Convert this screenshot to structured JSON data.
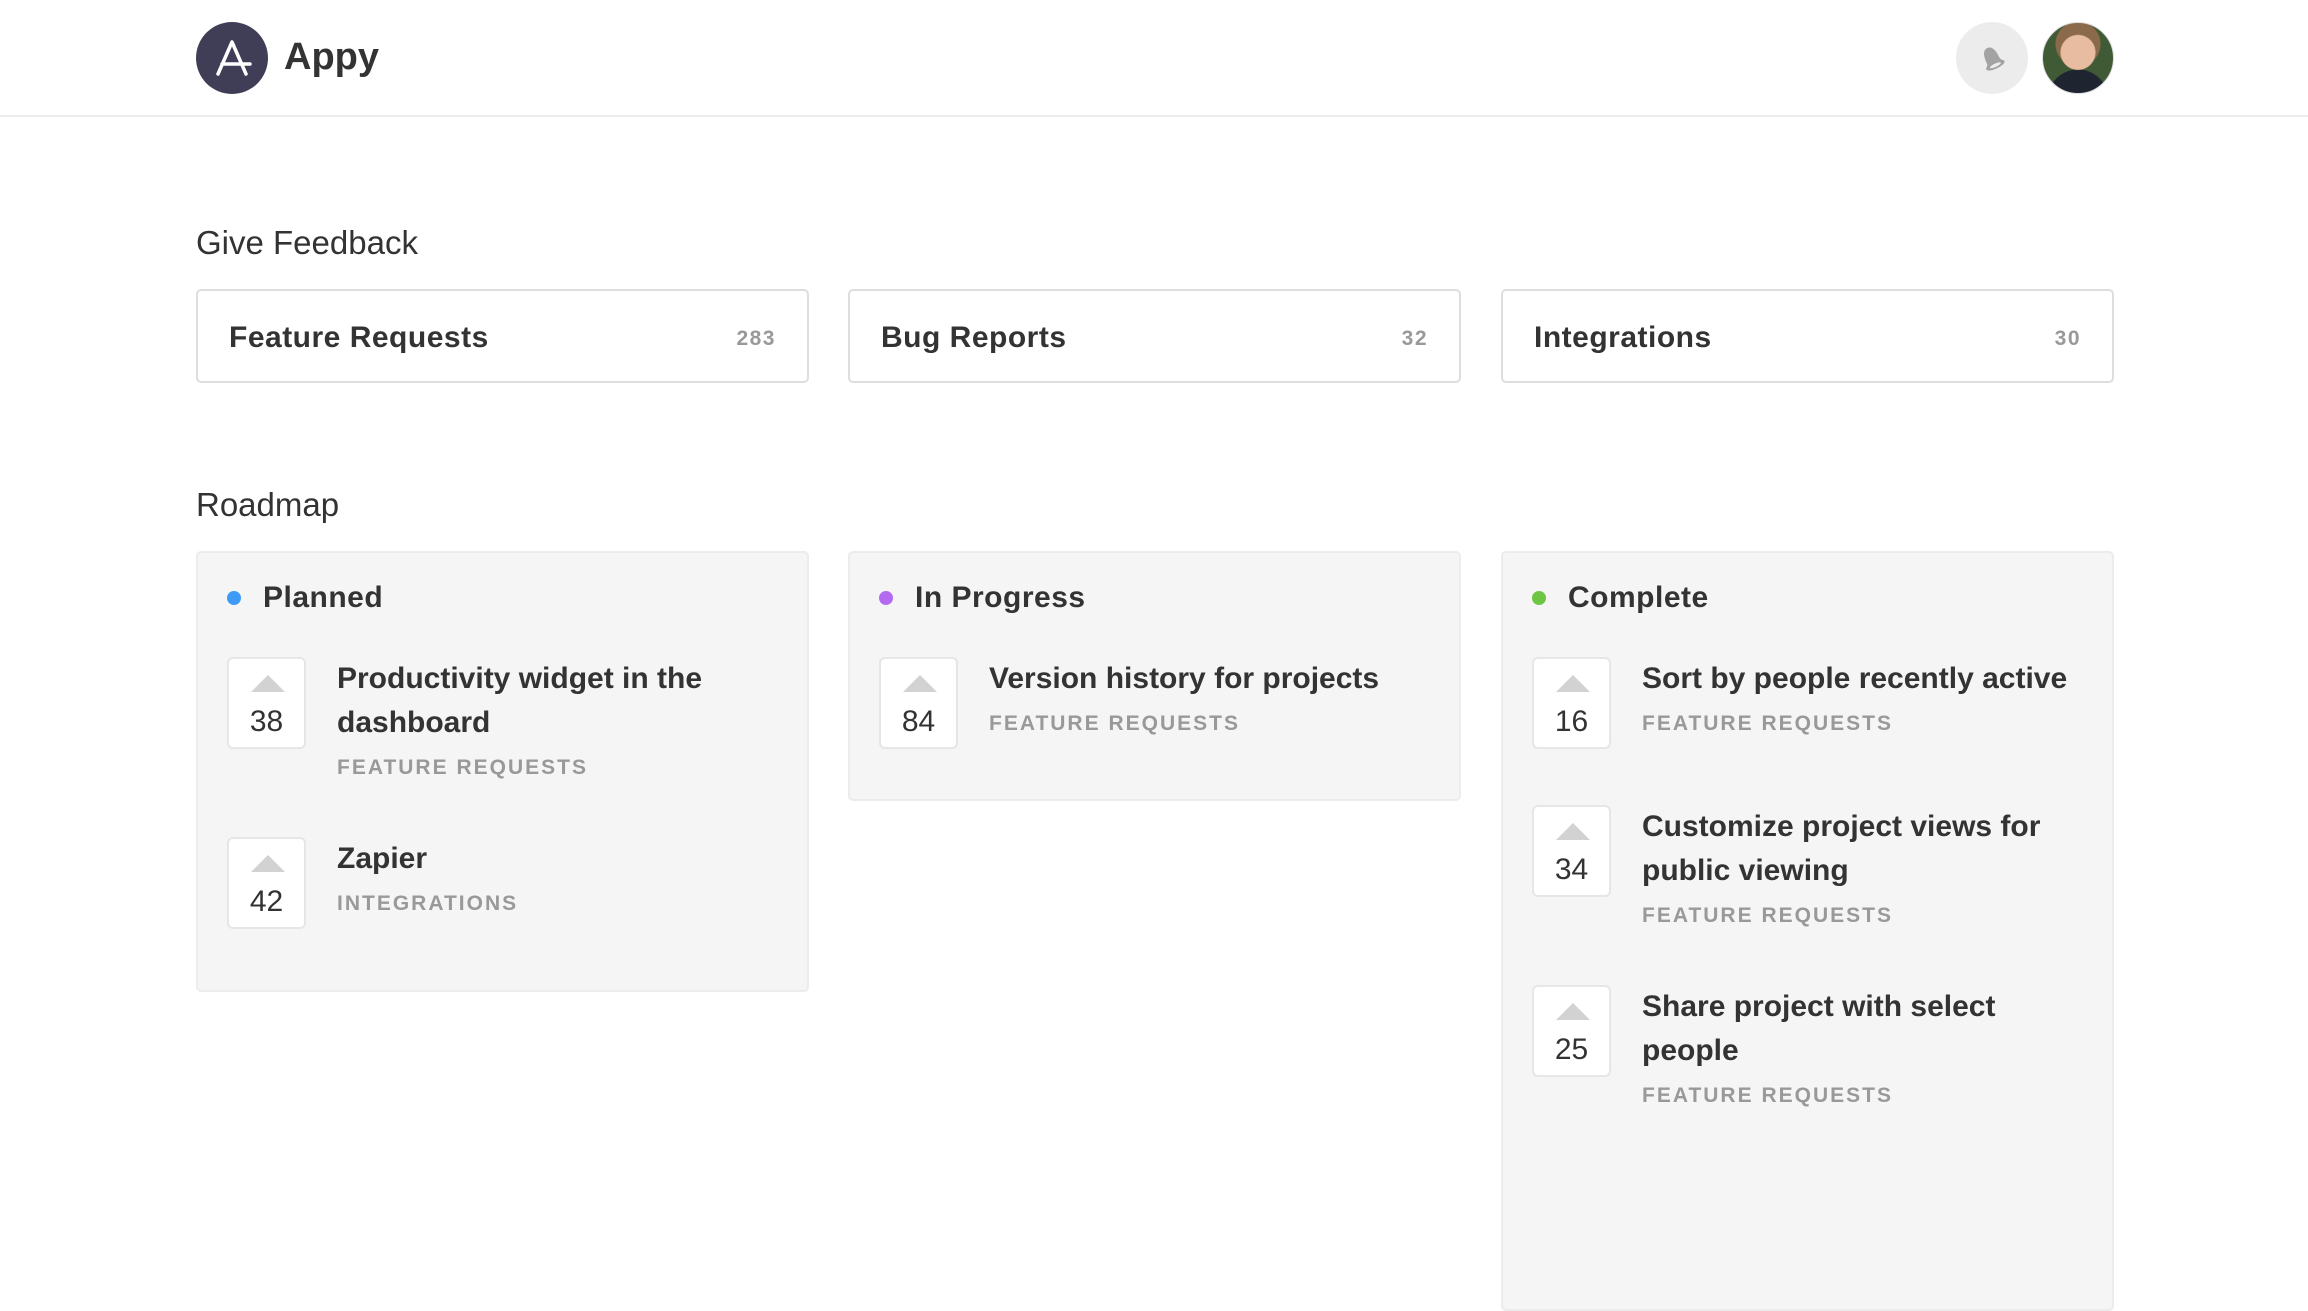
{
  "header": {
    "app_name": "Appy",
    "logo_letter": "A",
    "notification_icon": "bell-icon",
    "avatar": "user-avatar"
  },
  "feedback": {
    "title": "Give Feedback",
    "boards": [
      {
        "label": "Feature Requests",
        "count": "283"
      },
      {
        "label": "Bug Reports",
        "count": "32"
      },
      {
        "label": "Integrations",
        "count": "30"
      }
    ]
  },
  "roadmap": {
    "title": "Roadmap",
    "columns": [
      {
        "title": "Planned",
        "color": "#3d9bf5",
        "items": [
          {
            "votes": "38",
            "title": "Productivity widget in the dashboard",
            "category": "FEATURE REQUESTS"
          },
          {
            "votes": "42",
            "title": "Zapier",
            "category": "INTEGRATIONS"
          }
        ]
      },
      {
        "title": "In Progress",
        "color": "#b36af0",
        "items": [
          {
            "votes": "84",
            "title": "Version history for projects",
            "category": "FEATURE REQUESTS"
          }
        ]
      },
      {
        "title": "Complete",
        "color": "#6cc644",
        "items": [
          {
            "votes": "16",
            "title": "Sort by people recently active",
            "category": "FEATURE REQUESTS"
          },
          {
            "votes": "34",
            "title": "Customize project views for public viewing",
            "category": "FEATURE REQUESTS"
          },
          {
            "votes": "25",
            "title": "Share project with select people",
            "category": "FEATURE REQUESTS"
          }
        ]
      }
    ]
  }
}
